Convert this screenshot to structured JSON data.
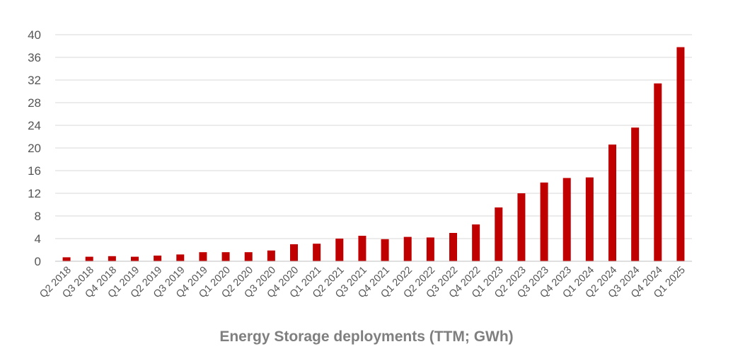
{
  "chart_data": {
    "type": "bar",
    "title": "Energy Storage deployments (TTM; GWh)",
    "xlabel": "",
    "ylabel": "",
    "ylim": [
      0,
      40
    ],
    "yticks": [
      0,
      4,
      8,
      12,
      16,
      20,
      24,
      28,
      32,
      36,
      40
    ],
    "grid": true,
    "legend": "none",
    "bar_color": "#c00000",
    "categories": [
      "Q2 2018",
      "Q3 2018",
      "Q4 2018",
      "Q1 2019",
      "Q2 2019",
      "Q3 2019",
      "Q4 2019",
      "Q1 2020",
      "Q2 2020",
      "Q3 2020",
      "Q4 2020",
      "Q1 2021",
      "Q2 2021",
      "Q3 2021",
      "Q4 2021",
      "Q1 2022",
      "Q2 2022",
      "Q3 2022",
      "Q4 2022",
      "Q1 2023",
      "Q2 2023",
      "Q3 2023",
      "Q4 2023",
      "Q1 2024",
      "Q2 2024",
      "Q3 2024",
      "Q4 2024",
      "Q1 2025"
    ],
    "values": [
      0.7,
      0.8,
      0.9,
      0.8,
      1.0,
      1.2,
      1.6,
      1.6,
      1.6,
      1.9,
      3.0,
      3.1,
      4.0,
      4.5,
      3.9,
      4.3,
      4.2,
      5.0,
      6.5,
      9.5,
      12.0,
      13.9,
      14.7,
      14.8,
      20.6,
      23.6,
      31.4,
      37.8
    ]
  }
}
